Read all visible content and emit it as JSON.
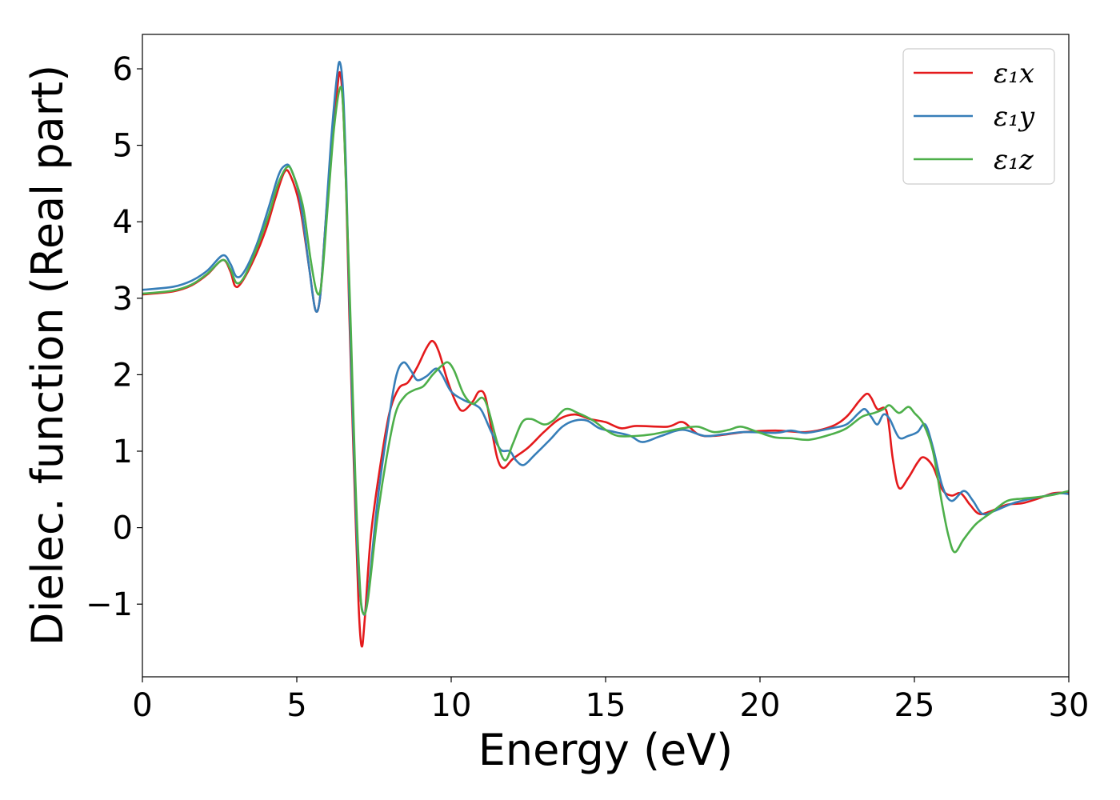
{
  "chart_data": {
    "type": "line",
    "xlabel": "Energy (eV)",
    "ylabel": "Dielec. function (Real part)",
    "xlim": [
      0,
      30
    ],
    "ylim": [
      -1.95,
      6.45
    ],
    "xticks": [
      "0",
      "5",
      "10",
      "15",
      "20",
      "25",
      "30"
    ],
    "yticks": [
      "−1",
      "0",
      "1",
      "2",
      "3",
      "4",
      "5",
      "6"
    ],
    "grid": false,
    "legend_position": "top-right",
    "series": [
      {
        "name": "ε₁x",
        "color": "#e41a1c",
        "points": [
          [
            0,
            3.05
          ],
          [
            1,
            3.09
          ],
          [
            1.6,
            3.17
          ],
          [
            2.1,
            3.31
          ],
          [
            2.6,
            3.5
          ],
          [
            2.85,
            3.35
          ],
          [
            3.0,
            3.16
          ],
          [
            3.2,
            3.2
          ],
          [
            3.6,
            3.5
          ],
          [
            4.0,
            3.9
          ],
          [
            4.3,
            4.3
          ],
          [
            4.6,
            4.65
          ],
          [
            4.8,
            4.6
          ],
          [
            5.1,
            4.2
          ],
          [
            5.4,
            3.4
          ],
          [
            5.6,
            2.85
          ],
          [
            5.75,
            3.0
          ],
          [
            5.9,
            3.8
          ],
          [
            6.1,
            4.9
          ],
          [
            6.3,
            5.7
          ],
          [
            6.4,
            5.95
          ],
          [
            6.5,
            5.5
          ],
          [
            6.6,
            4.4
          ],
          [
            6.7,
            2.8
          ],
          [
            6.85,
            0.8
          ],
          [
            7.0,
            -1.0
          ],
          [
            7.1,
            -1.55
          ],
          [
            7.2,
            -1.2
          ],
          [
            7.4,
            -0.1
          ],
          [
            7.7,
            0.8
          ],
          [
            8.0,
            1.5
          ],
          [
            8.3,
            1.82
          ],
          [
            8.6,
            1.9
          ],
          [
            8.9,
            2.1
          ],
          [
            9.2,
            2.35
          ],
          [
            9.4,
            2.44
          ],
          [
            9.6,
            2.3
          ],
          [
            9.9,
            1.9
          ],
          [
            10.2,
            1.6
          ],
          [
            10.4,
            1.53
          ],
          [
            10.7,
            1.65
          ],
          [
            10.9,
            1.78
          ],
          [
            11.1,
            1.72
          ],
          [
            11.3,
            1.3
          ],
          [
            11.5,
            0.9
          ],
          [
            11.7,
            0.78
          ],
          [
            12.0,
            0.9
          ],
          [
            12.5,
            1.05
          ],
          [
            13.0,
            1.25
          ],
          [
            13.5,
            1.42
          ],
          [
            14.0,
            1.48
          ],
          [
            14.5,
            1.42
          ],
          [
            15.0,
            1.38
          ],
          [
            15.5,
            1.3
          ],
          [
            16.0,
            1.33
          ],
          [
            17.0,
            1.32
          ],
          [
            17.5,
            1.38
          ],
          [
            18.0,
            1.22
          ],
          [
            18.5,
            1.2
          ],
          [
            19.5,
            1.25
          ],
          [
            20.5,
            1.27
          ],
          [
            21.5,
            1.25
          ],
          [
            22.3,
            1.32
          ],
          [
            22.8,
            1.45
          ],
          [
            23.2,
            1.65
          ],
          [
            23.45,
            1.75
          ],
          [
            23.6,
            1.7
          ],
          [
            23.8,
            1.55
          ],
          [
            24.1,
            1.52
          ],
          [
            24.3,
            0.9
          ],
          [
            24.5,
            0.52
          ],
          [
            24.8,
            0.65
          ],
          [
            25.1,
            0.85
          ],
          [
            25.3,
            0.92
          ],
          [
            25.6,
            0.8
          ],
          [
            25.9,
            0.5
          ],
          [
            26.2,
            0.42
          ],
          [
            26.5,
            0.45
          ],
          [
            26.8,
            0.3
          ],
          [
            27.1,
            0.18
          ],
          [
            27.5,
            0.22
          ],
          [
            28.0,
            0.3
          ],
          [
            28.5,
            0.32
          ],
          [
            29.0,
            0.38
          ],
          [
            29.5,
            0.45
          ],
          [
            30,
            0.46
          ]
        ]
      },
      {
        "name": "ε₁y",
        "color": "#377eb8",
        "points": [
          [
            0,
            3.11
          ],
          [
            1,
            3.15
          ],
          [
            1.6,
            3.23
          ],
          [
            2.1,
            3.36
          ],
          [
            2.6,
            3.56
          ],
          [
            2.85,
            3.45
          ],
          [
            3.05,
            3.28
          ],
          [
            3.3,
            3.35
          ],
          [
            3.7,
            3.7
          ],
          [
            4.1,
            4.2
          ],
          [
            4.4,
            4.6
          ],
          [
            4.6,
            4.73
          ],
          [
            4.8,
            4.7
          ],
          [
            5.1,
            4.3
          ],
          [
            5.4,
            3.4
          ],
          [
            5.6,
            2.85
          ],
          [
            5.75,
            3.0
          ],
          [
            5.9,
            3.8
          ],
          [
            6.1,
            5.0
          ],
          [
            6.3,
            5.9
          ],
          [
            6.4,
            6.08
          ],
          [
            6.5,
            5.7
          ],
          [
            6.6,
            4.6
          ],
          [
            6.7,
            3.0
          ],
          [
            6.85,
            1.0
          ],
          [
            7.0,
            -0.6
          ],
          [
            7.15,
            -1.12
          ],
          [
            7.3,
            -0.9
          ],
          [
            7.6,
            0.3
          ],
          [
            7.9,
            1.2
          ],
          [
            8.2,
            1.95
          ],
          [
            8.45,
            2.16
          ],
          [
            8.7,
            2.05
          ],
          [
            8.9,
            1.93
          ],
          [
            9.2,
            1.98
          ],
          [
            9.5,
            2.08
          ],
          [
            9.7,
            2.0
          ],
          [
            10.0,
            1.78
          ],
          [
            10.4,
            1.67
          ],
          [
            10.8,
            1.6
          ],
          [
            11.0,
            1.52
          ],
          [
            11.3,
            1.25
          ],
          [
            11.6,
            1.02
          ],
          [
            11.9,
            1.0
          ],
          [
            12.1,
            0.88
          ],
          [
            12.35,
            0.82
          ],
          [
            12.7,
            0.95
          ],
          [
            13.2,
            1.15
          ],
          [
            13.6,
            1.32
          ],
          [
            14.0,
            1.4
          ],
          [
            14.4,
            1.4
          ],
          [
            14.8,
            1.3
          ],
          [
            15.3,
            1.25
          ],
          [
            15.8,
            1.2
          ],
          [
            16.2,
            1.12
          ],
          [
            16.8,
            1.2
          ],
          [
            17.5,
            1.28
          ],
          [
            18.2,
            1.2
          ],
          [
            18.8,
            1.22
          ],
          [
            19.5,
            1.25
          ],
          [
            20.5,
            1.24
          ],
          [
            21.0,
            1.27
          ],
          [
            21.5,
            1.24
          ],
          [
            22.3,
            1.3
          ],
          [
            22.8,
            1.35
          ],
          [
            23.2,
            1.5
          ],
          [
            23.4,
            1.55
          ],
          [
            23.6,
            1.45
          ],
          [
            23.8,
            1.35
          ],
          [
            24.0,
            1.48
          ],
          [
            24.2,
            1.42
          ],
          [
            24.5,
            1.18
          ],
          [
            24.8,
            1.2
          ],
          [
            25.1,
            1.25
          ],
          [
            25.35,
            1.35
          ],
          [
            25.6,
            1.05
          ],
          [
            25.9,
            0.55
          ],
          [
            26.2,
            0.35
          ],
          [
            26.6,
            0.48
          ],
          [
            26.9,
            0.35
          ],
          [
            27.2,
            0.18
          ],
          [
            27.6,
            0.22
          ],
          [
            28.2,
            0.32
          ],
          [
            28.8,
            0.38
          ],
          [
            29.3,
            0.42
          ],
          [
            29.7,
            0.45
          ],
          [
            30,
            0.44
          ]
        ]
      },
      {
        "name": "ε₁z",
        "color": "#4daf4a",
        "points": [
          [
            0,
            3.06
          ],
          [
            1,
            3.1
          ],
          [
            1.6,
            3.18
          ],
          [
            2.1,
            3.32
          ],
          [
            2.6,
            3.5
          ],
          [
            2.85,
            3.38
          ],
          [
            3.05,
            3.2
          ],
          [
            3.3,
            3.28
          ],
          [
            3.7,
            3.65
          ],
          [
            4.1,
            4.1
          ],
          [
            4.4,
            4.5
          ],
          [
            4.7,
            4.72
          ],
          [
            4.9,
            4.6
          ],
          [
            5.2,
            4.2
          ],
          [
            5.45,
            3.5
          ],
          [
            5.65,
            3.08
          ],
          [
            5.8,
            3.2
          ],
          [
            6.0,
            4.2
          ],
          [
            6.2,
            5.2
          ],
          [
            6.4,
            5.75
          ],
          [
            6.5,
            5.5
          ],
          [
            6.6,
            4.4
          ],
          [
            6.75,
            2.6
          ],
          [
            6.9,
            0.6
          ],
          [
            7.05,
            -0.8
          ],
          [
            7.15,
            -1.12
          ],
          [
            7.3,
            -0.95
          ],
          [
            7.6,
            0.1
          ],
          [
            7.9,
            0.9
          ],
          [
            8.2,
            1.5
          ],
          [
            8.5,
            1.72
          ],
          [
            8.8,
            1.8
          ],
          [
            9.1,
            1.85
          ],
          [
            9.4,
            2.0
          ],
          [
            9.7,
            2.12
          ],
          [
            9.9,
            2.16
          ],
          [
            10.1,
            2.05
          ],
          [
            10.4,
            1.75
          ],
          [
            10.7,
            1.62
          ],
          [
            11.0,
            1.7
          ],
          [
            11.2,
            1.55
          ],
          [
            11.5,
            1.1
          ],
          [
            11.75,
            0.88
          ],
          [
            12.0,
            1.1
          ],
          [
            12.3,
            1.38
          ],
          [
            12.6,
            1.42
          ],
          [
            13.0,
            1.35
          ],
          [
            13.3,
            1.4
          ],
          [
            13.7,
            1.55
          ],
          [
            14.1,
            1.5
          ],
          [
            14.6,
            1.4
          ],
          [
            15.0,
            1.28
          ],
          [
            15.4,
            1.2
          ],
          [
            16.0,
            1.2
          ],
          [
            16.5,
            1.22
          ],
          [
            17.0,
            1.26
          ],
          [
            17.5,
            1.3
          ],
          [
            18.0,
            1.32
          ],
          [
            18.5,
            1.25
          ],
          [
            19.0,
            1.28
          ],
          [
            19.4,
            1.32
          ],
          [
            20.0,
            1.24
          ],
          [
            20.5,
            1.18
          ],
          [
            21.0,
            1.17
          ],
          [
            21.6,
            1.15
          ],
          [
            22.3,
            1.22
          ],
          [
            22.8,
            1.3
          ],
          [
            23.3,
            1.45
          ],
          [
            23.7,
            1.5
          ],
          [
            24.0,
            1.55
          ],
          [
            24.2,
            1.6
          ],
          [
            24.5,
            1.5
          ],
          [
            24.8,
            1.58
          ],
          [
            25.0,
            1.5
          ],
          [
            25.3,
            1.35
          ],
          [
            25.6,
            1.0
          ],
          [
            25.9,
            0.3
          ],
          [
            26.1,
            -0.1
          ],
          [
            26.3,
            -0.32
          ],
          [
            26.6,
            -0.15
          ],
          [
            27.0,
            0.05
          ],
          [
            27.5,
            0.2
          ],
          [
            28.0,
            0.35
          ],
          [
            28.5,
            0.38
          ],
          [
            29.0,
            0.4
          ],
          [
            29.5,
            0.43
          ],
          [
            30,
            0.48
          ]
        ]
      }
    ]
  }
}
